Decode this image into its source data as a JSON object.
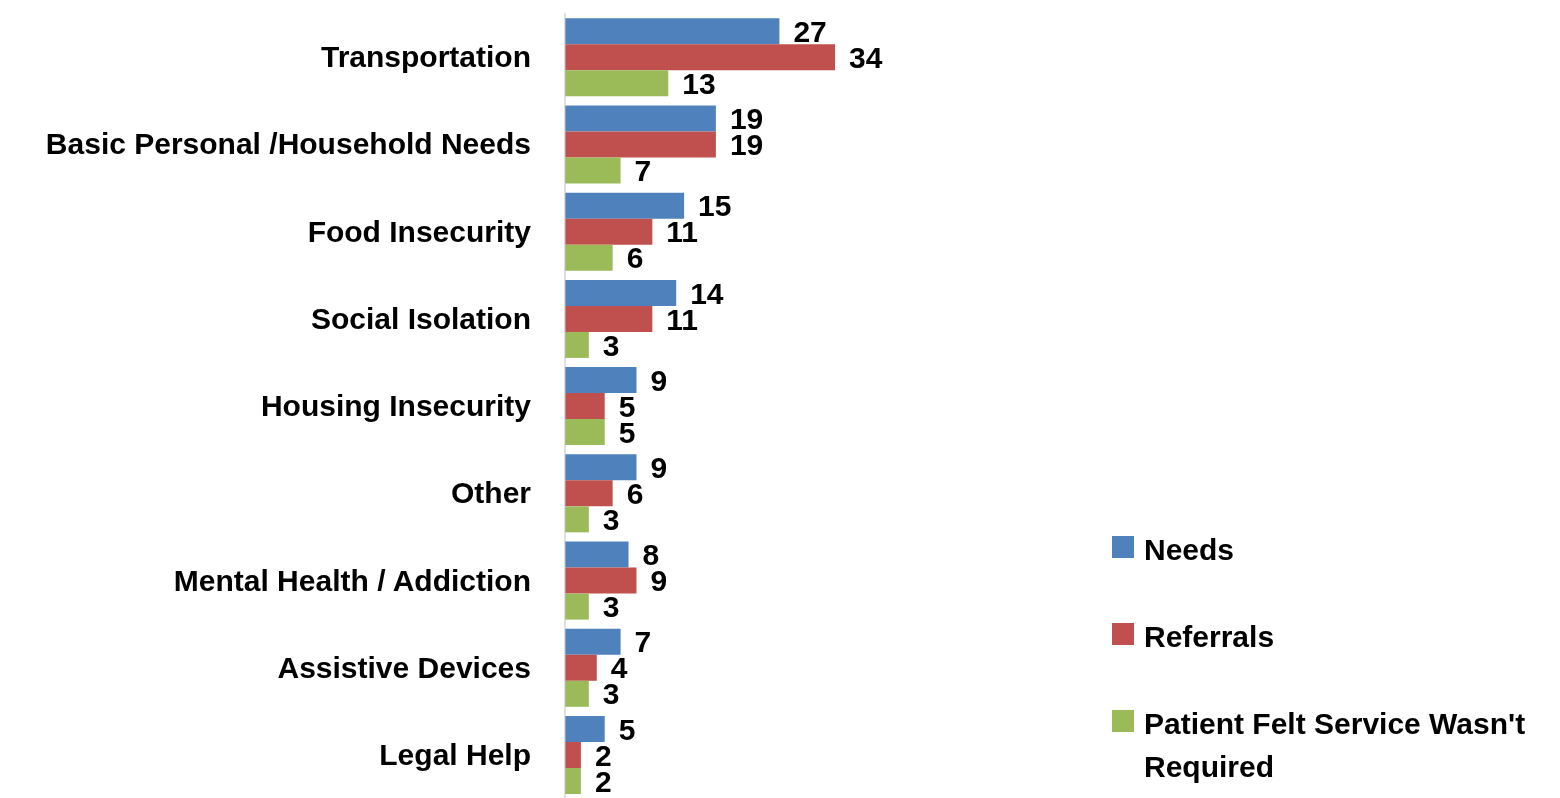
{
  "chart_data": {
    "type": "bar",
    "orientation": "horizontal",
    "categories": [
      "Transportation",
      "Basic Personal /Household Needs",
      "Food Insecurity",
      "Social Isolation",
      "Housing Insecurity",
      "Other",
      "Mental Health / Addiction",
      "Assistive Devices",
      "Legal Help"
    ],
    "series": [
      {
        "name": "Needs",
        "color": "#4f81bd",
        "values": [
          27,
          19,
          15,
          14,
          9,
          9,
          8,
          7,
          5
        ]
      },
      {
        "name": "Referrals",
        "color": "#c0504d",
        "values": [
          34,
          19,
          11,
          11,
          5,
          6,
          9,
          4,
          2
        ]
      },
      {
        "name": "Patient Felt Service Wasn't Required",
        "color": "#9bbb59",
        "values": [
          13,
          7,
          6,
          3,
          5,
          3,
          3,
          3,
          2
        ]
      }
    ],
    "data_labels": true,
    "legend": "bottom right"
  }
}
